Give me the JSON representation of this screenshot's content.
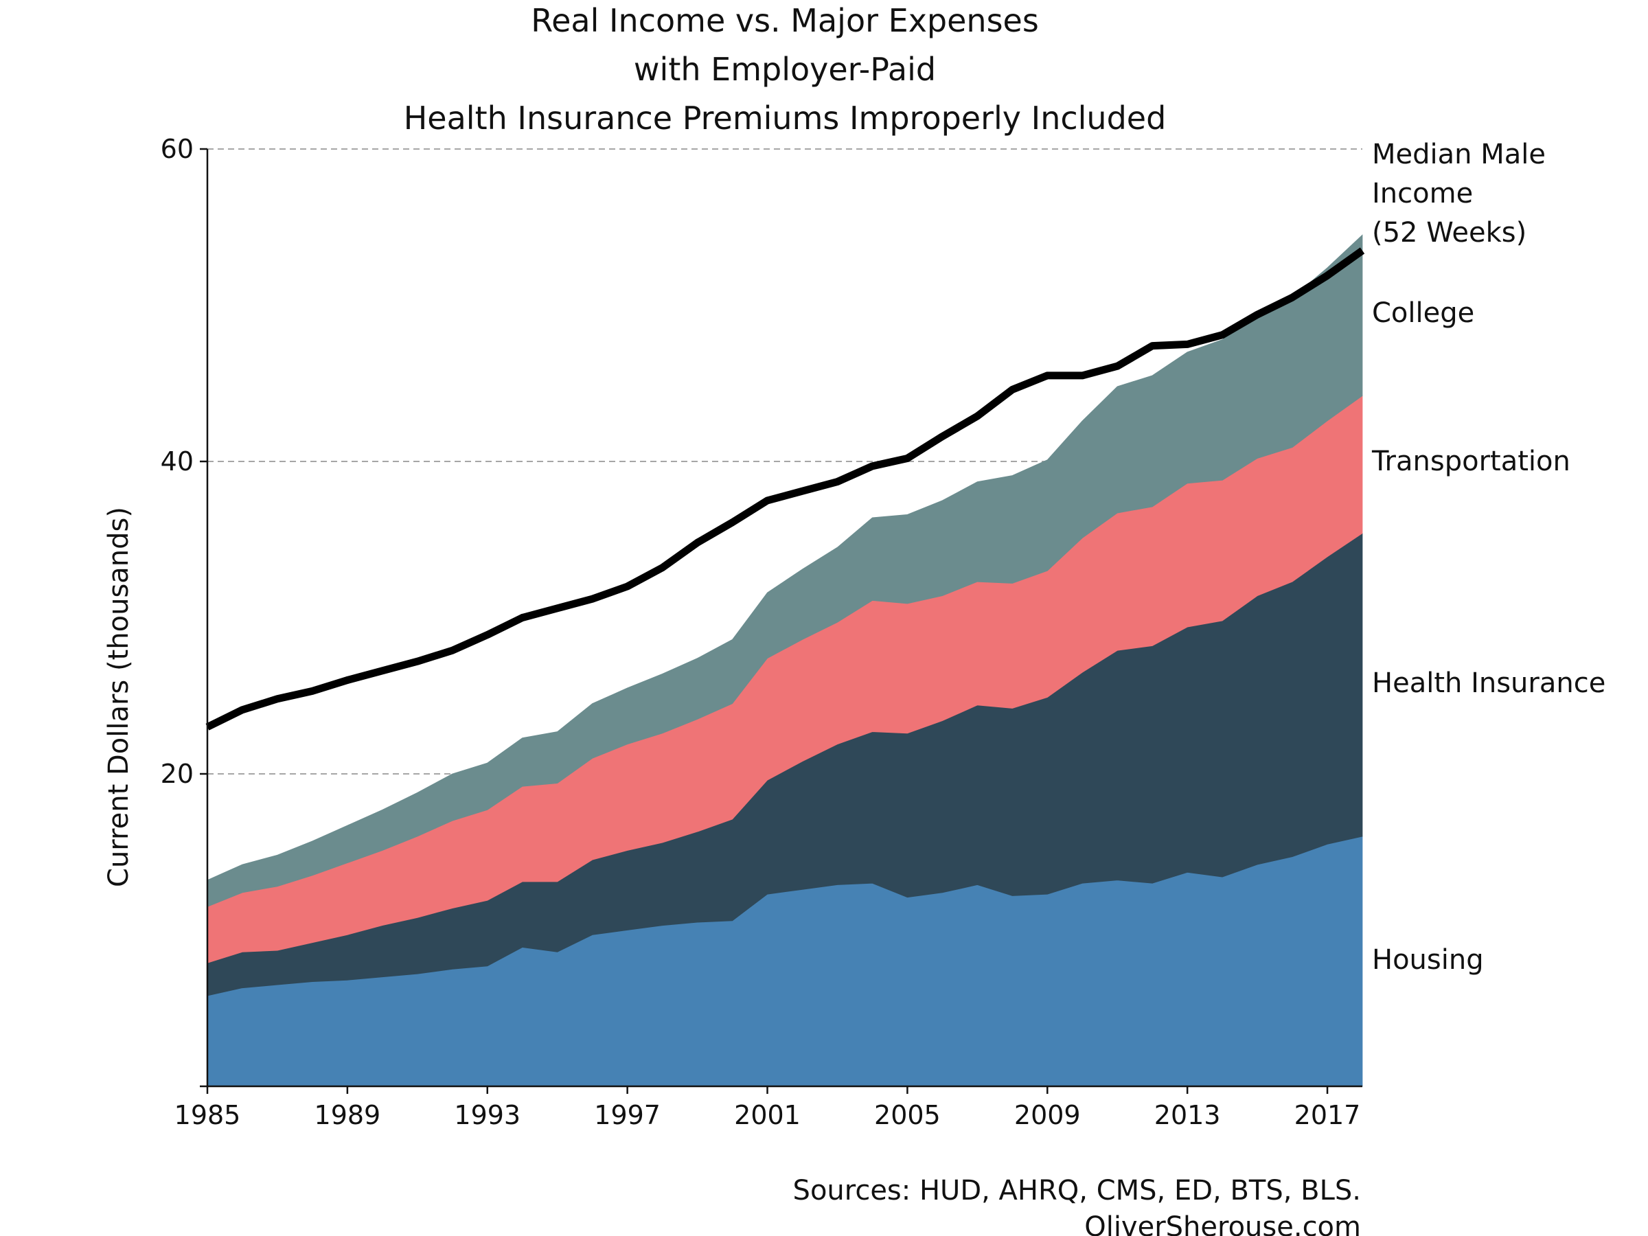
{
  "chart_data": {
    "type": "area",
    "title": [
      "Real Income vs. Major Expenses",
      "with Employer-Paid",
      "Health Insurance Premiums Improperly Included"
    ],
    "ylabel": "Current Dollars (thousands)",
    "xlabel": "",
    "xlim": [
      1985,
      2018
    ],
    "ylim": [
      0,
      60
    ],
    "x_ticks": [
      1985,
      1989,
      1993,
      1997,
      2001,
      2005,
      2009,
      2013,
      2017
    ],
    "y_ticks": [
      20,
      40,
      60
    ],
    "grid": "horizontal dashed",
    "years": [
      1985,
      1986,
      1987,
      1988,
      1989,
      1990,
      1991,
      1992,
      1993,
      1994,
      1995,
      1996,
      1997,
      1998,
      1999,
      2000,
      2001,
      2002,
      2003,
      2004,
      2005,
      2006,
      2007,
      2008,
      2009,
      2010,
      2011,
      2012,
      2013,
      2014,
      2015,
      2016,
      2017,
      2018
    ],
    "stacked_series": [
      {
        "name": "Housing",
        "color": "#4682b4",
        "values": [
          5.8,
          6.3,
          6.5,
          6.7,
          6.8,
          7.0,
          7.2,
          7.5,
          7.7,
          8.9,
          8.6,
          9.7,
          10.0,
          10.3,
          10.5,
          10.6,
          12.3,
          12.6,
          12.9,
          13.0,
          12.1,
          12.4,
          12.9,
          12.2,
          12.3,
          13.0,
          13.2,
          13.0,
          13.7,
          13.4,
          14.2,
          14.7,
          15.5,
          16.0
        ]
      },
      {
        "name": "Health Insurance",
        "color": "#2f4858",
        "values": [
          2.1,
          2.3,
          2.2,
          2.5,
          2.9,
          3.3,
          3.6,
          3.9,
          4.2,
          4.2,
          4.5,
          4.8,
          5.1,
          5.3,
          5.8,
          6.5,
          7.3,
          8.2,
          9.0,
          9.7,
          10.5,
          11.0,
          11.5,
          12.0,
          12.6,
          13.5,
          14.7,
          15.2,
          15.7,
          16.4,
          17.2,
          17.6,
          18.4,
          19.4
        ]
      },
      {
        "name": "Transportation",
        "color": "#ef7476",
        "values": [
          3.6,
          3.8,
          4.1,
          4.3,
          4.6,
          4.8,
          5.2,
          5.6,
          5.8,
          6.1,
          6.3,
          6.5,
          6.8,
          7.0,
          7.2,
          7.4,
          7.8,
          7.8,
          7.8,
          8.4,
          8.3,
          8.0,
          7.9,
          8.0,
          8.1,
          8.6,
          8.8,
          8.9,
          9.2,
          9.0,
          8.8,
          8.6,
          8.7,
          8.8
        ]
      },
      {
        "name": "College",
        "color": "#6b8c8e",
        "values": [
          1.7,
          1.8,
          2.0,
          2.2,
          2.4,
          2.6,
          2.8,
          3.0,
          3.0,
          3.1,
          3.3,
          3.5,
          3.6,
          3.8,
          3.9,
          4.1,
          4.2,
          4.5,
          4.8,
          5.3,
          5.7,
          6.1,
          6.4,
          6.9,
          7.1,
          7.5,
          8.1,
          8.4,
          8.4,
          9.0,
          9.3,
          9.6,
          9.8,
          10.3
        ]
      }
    ],
    "line_series": {
      "name": "Median Male Income (52 Weeks)",
      "color": "#000000",
      "values": [
        23.0,
        24.1,
        24.8,
        25.3,
        26.0,
        26.6,
        27.2,
        27.9,
        28.9,
        30.0,
        30.6,
        31.2,
        32.0,
        33.2,
        34.8,
        36.1,
        37.5,
        38.1,
        38.7,
        39.7,
        40.2,
        41.6,
        42.9,
        44.6,
        45.5,
        45.5,
        46.1,
        47.4,
        47.5,
        48.1,
        49.4,
        50.5,
        51.9,
        53.5
      ]
    },
    "series_labels": {
      "line": [
        "Median Male",
        "Income",
        "(52 Weeks)"
      ],
      "college": "College",
      "transportation": "Transportation",
      "health": "Health Insurance",
      "housing": "Housing"
    },
    "source": [
      "Sources: HUD, AHRQ, CMS, ED, BTS, BLS.",
      "OliverSherouse.com"
    ]
  }
}
